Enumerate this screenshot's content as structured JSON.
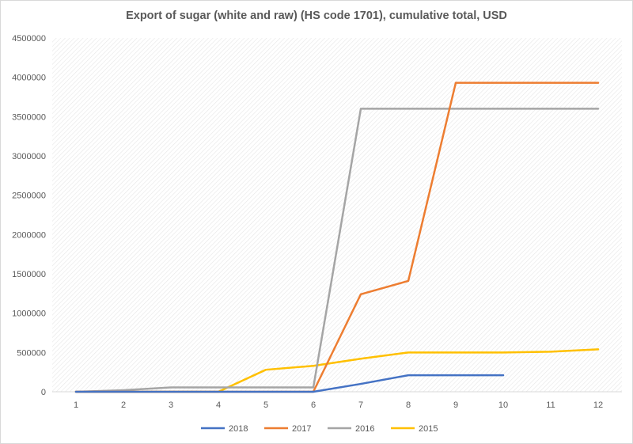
{
  "chart_data": {
    "type": "line",
    "title": "Export of sugar (white and raw) (HS code 1701), cumulative total, USD",
    "x": [
      1,
      2,
      3,
      4,
      5,
      6,
      7,
      8,
      9,
      10,
      11,
      12
    ],
    "x_tick_labels": [
      "1",
      "2",
      "3",
      "4",
      "5",
      "6",
      "7",
      "8",
      "9",
      "10",
      "11",
      "12"
    ],
    "ylim": [
      0,
      4500000
    ],
    "y_ticks": [
      0,
      500000,
      1000000,
      1500000,
      2000000,
      2500000,
      3000000,
      3500000,
      4000000,
      4500000
    ],
    "y_tick_labels": [
      "0",
      "500000",
      "1000000",
      "1500000",
      "2000000",
      "2500000",
      "3000000",
      "3500000",
      "4000000",
      "4500000"
    ],
    "grid": "hatched plot area",
    "legend_position": "bottom",
    "series": [
      {
        "name": "2018",
        "color": "#4472C4",
        "values": [
          0,
          0,
          0,
          0,
          0,
          0,
          100000,
          210000,
          210000,
          210000,
          null,
          null
        ]
      },
      {
        "name": "2017",
        "color": "#ED7D31",
        "values": [
          0,
          0,
          0,
          0,
          0,
          0,
          1240000,
          1410000,
          3930000,
          3930000,
          3930000,
          3930000
        ]
      },
      {
        "name": "2016",
        "color": "#A5A5A5",
        "values": [
          0,
          20000,
          55000,
          55000,
          55000,
          55000,
          3600000,
          3600000,
          3600000,
          3600000,
          3600000,
          3600000
        ]
      },
      {
        "name": "2015",
        "color": "#FFC000",
        "values": [
          0,
          0,
          0,
          0,
          280000,
          330000,
          420000,
          500000,
          500000,
          500000,
          510000,
          540000
        ]
      }
    ]
  }
}
